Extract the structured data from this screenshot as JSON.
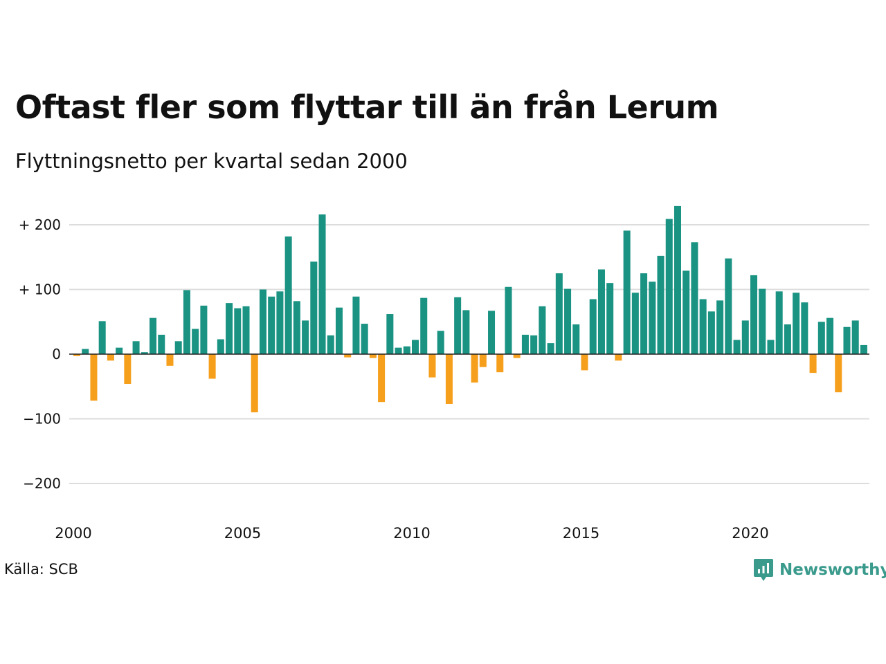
{
  "title": "Oftast fler som flyttar till än från Lerum",
  "subtitle": "Flyttningsnetto per kvartal sedan 2000",
  "source": "Källa: SCB",
  "brand": {
    "name": "Newsworthy",
    "icon": "newsworthy-logo-icon"
  },
  "colors": {
    "positive": "#1a9383",
    "negative": "#f59f1c",
    "grid": "#dddddd",
    "zero": "#222222"
  },
  "chart_data": {
    "type": "bar",
    "ylim": [
      -240,
      240
    ],
    "grid": true,
    "y_ticks": [
      {
        "value": 200,
        "label": "+ 200"
      },
      {
        "value": 100,
        "label": "+ 100"
      },
      {
        "value": 0,
        "label": "0"
      },
      {
        "value": -100,
        "label": "−100"
      },
      {
        "value": -200,
        "label": "−200"
      }
    ],
    "x_ticks": [
      {
        "value": 2000,
        "label": "2000"
      },
      {
        "value": 2005,
        "label": "2005"
      },
      {
        "value": 2010,
        "label": "2010"
      },
      {
        "value": 2015,
        "label": "2015"
      },
      {
        "value": 2020,
        "label": "2020"
      }
    ],
    "start_year": 2000,
    "values": [
      -3,
      8,
      -72,
      51,
      -10,
      10,
      -46,
      20,
      3,
      56,
      30,
      -18,
      20,
      99,
      39,
      75,
      -38,
      23,
      79,
      71,
      74,
      -90,
      100,
      89,
      97,
      182,
      82,
      52,
      143,
      216,
      29,
      72,
      -5,
      89,
      47,
      -6,
      -74,
      62,
      10,
      12,
      22,
      87,
      -36,
      36,
      -77,
      88,
      68,
      -44,
      -20,
      67,
      -28,
      104,
      -6,
      30,
      29,
      74,
      17,
      125,
      101,
      46,
      -25,
      85,
      131,
      110,
      -10,
      191,
      95,
      125,
      112,
      152,
      209,
      229,
      129,
      173,
      85,
      66,
      83,
      148,
      22,
      52,
      122,
      101,
      22,
      97,
      46,
      95,
      80,
      -29,
      50,
      56,
      -59,
      42,
      52,
      14
    ]
  }
}
